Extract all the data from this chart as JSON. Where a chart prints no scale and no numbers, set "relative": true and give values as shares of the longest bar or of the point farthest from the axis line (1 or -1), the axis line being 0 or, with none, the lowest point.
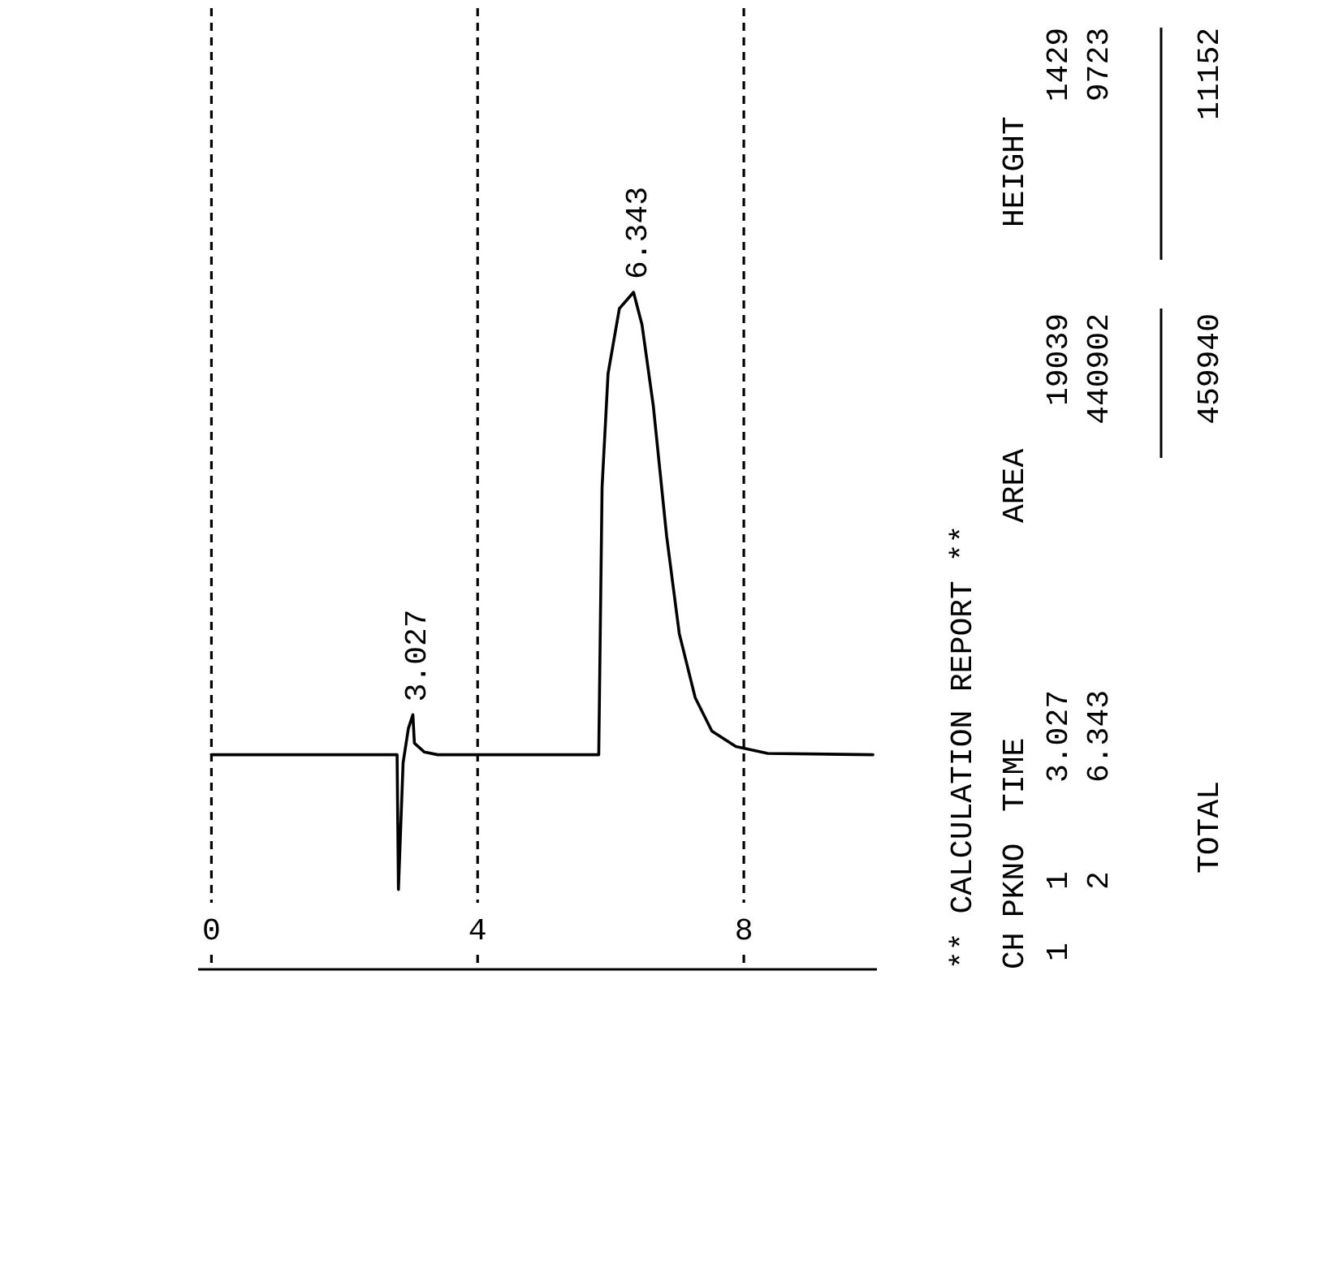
{
  "chart_data": {
    "type": "line",
    "relative": true,
    "line_style": "solid",
    "grid": "x",
    "tick_labels": "x",
    "xlim": [
      -0.2,
      10
    ],
    "xticks": [
      0,
      4,
      8
    ],
    "series": [
      {
        "color": "#000000",
        "x": [
          0,
          2.67,
          2.79,
          2.81,
          2.88,
          2.96,
          3.027,
          3.05,
          3.2,
          3.4,
          5.82,
          5.87,
          5.96,
          6.13,
          6.343,
          6.47,
          6.64,
          6.84,
          7.03,
          7.27,
          7.52,
          7.88,
          8.36,
          9.94
        ],
        "values": [
          0.317,
          0.317,
          0.317,
          0.118,
          0.305,
          0.356,
          0.376,
          0.334,
          0.321,
          0.317,
          0.317,
          0.712,
          0.88,
          0.976,
          1,
          0.952,
          0.832,
          0.64,
          0.496,
          0.401,
          0.352,
          0.329,
          0.319,
          0.317
        ]
      }
    ],
    "annotations": [
      {
        "text": "3.027",
        "x": 3.027,
        "y": 0.376
      },
      {
        "text": "6.343",
        "x": 6.343,
        "y": 1
      },
      "** CALCULATION REPORT **",
      "CH",
      "PKNO",
      "TIME",
      "AREA",
      "HEIGHT",
      "1",
      "1",
      "3.027",
      "19039",
      "1429",
      "2",
      "6.343",
      "440902",
      "9723",
      "TOTAL",
      "459940",
      "11152"
    ]
  }
}
